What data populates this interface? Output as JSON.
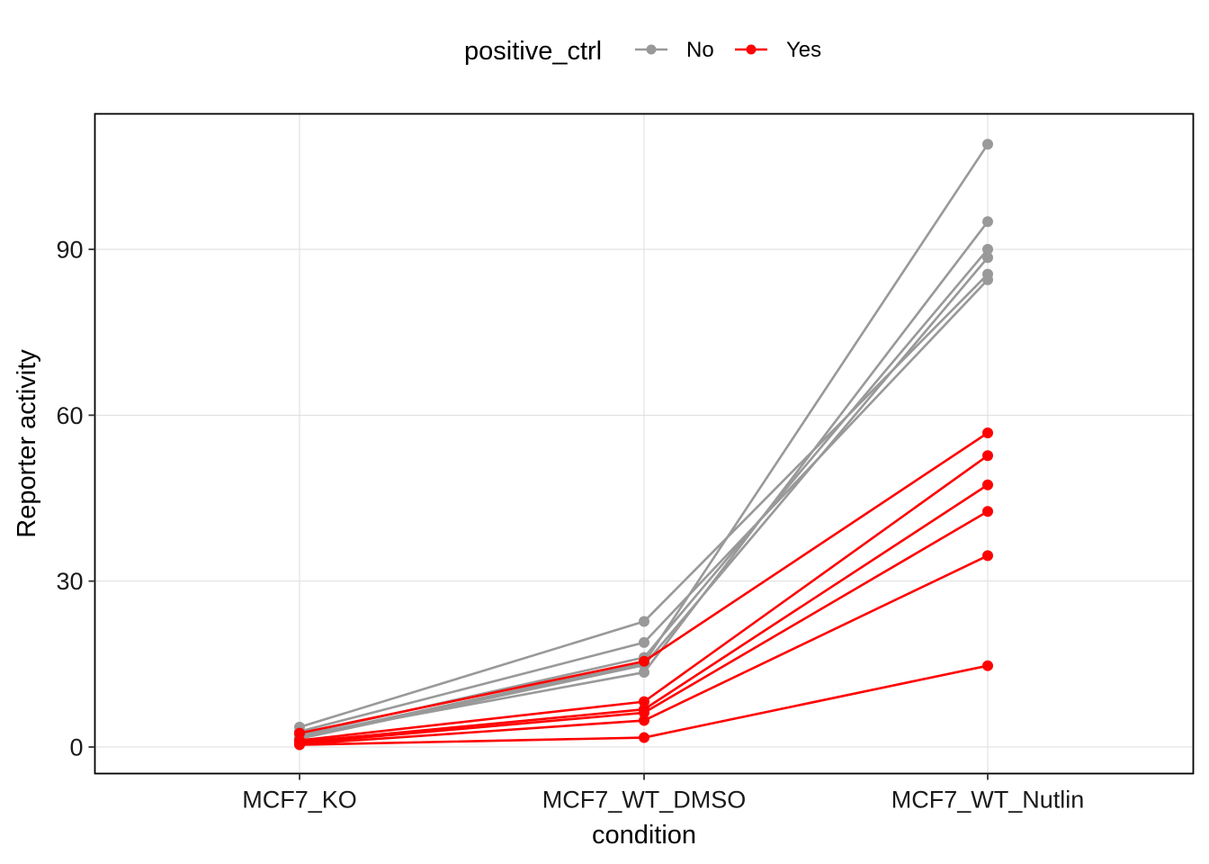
{
  "chart_data": {
    "type": "line",
    "xlabel": "condition",
    "ylabel": "Reporter activity",
    "categories": [
      "MCF7_KO",
      "MCF7_WT_DMSO",
      "MCF7_WT_Nutlin"
    ],
    "ylim": [
      -4.8,
      114.5
    ],
    "yticks": [
      0,
      30,
      60,
      90
    ],
    "grid": true,
    "legend": {
      "title": "positive_ctrl",
      "position": "top",
      "entries": [
        {
          "label": "No",
          "color": "#999999"
        },
        {
          "label": "Yes",
          "color": "#FF0000"
        }
      ]
    },
    "series": [
      {
        "group": "No",
        "color": "#999999",
        "values": [
          3.6,
          22.7,
          85.5
        ]
      },
      {
        "group": "No",
        "color": "#999999",
        "values": [
          2.8,
          18.9,
          84.5
        ]
      },
      {
        "group": "No",
        "color": "#999999",
        "values": [
          2.2,
          16.2,
          90.0
        ]
      },
      {
        "group": "No",
        "color": "#999999",
        "values": [
          1.8,
          15.2,
          109.0
        ]
      },
      {
        "group": "No",
        "color": "#999999",
        "values": [
          2.0,
          13.5,
          95.0
        ]
      },
      {
        "group": "No",
        "color": "#999999",
        "values": [
          1.5,
          14.8,
          88.5
        ]
      },
      {
        "group": "Yes",
        "color": "#FF0000",
        "values": [
          2.5,
          15.5,
          56.8
        ]
      },
      {
        "group": "Yes",
        "color": "#FF0000",
        "values": [
          1.2,
          8.2,
          52.7
        ]
      },
      {
        "group": "Yes",
        "color": "#FF0000",
        "values": [
          0.9,
          6.8,
          47.4
        ]
      },
      {
        "group": "Yes",
        "color": "#FF0000",
        "values": [
          0.7,
          6.2,
          42.6
        ]
      },
      {
        "group": "Yes",
        "color": "#FF0000",
        "values": [
          0.5,
          4.8,
          34.6
        ]
      },
      {
        "group": "Yes",
        "color": "#FF0000",
        "values": [
          0.4,
          1.7,
          14.7
        ]
      }
    ]
  }
}
